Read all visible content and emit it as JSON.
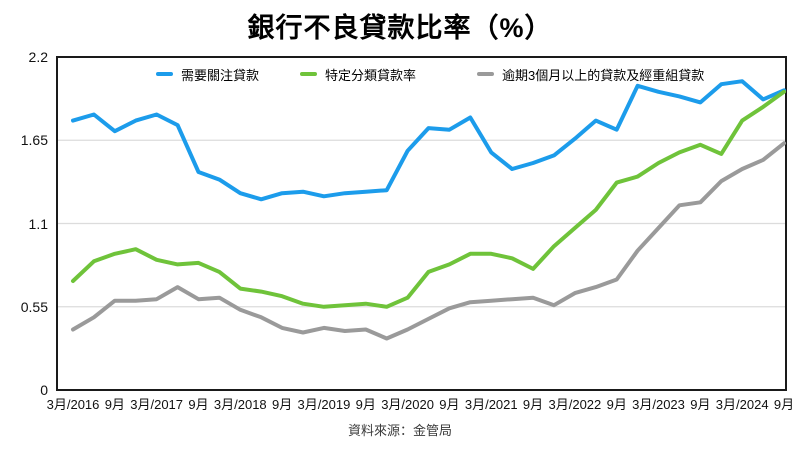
{
  "title": "銀行不良貸款比率（%）",
  "source_note": "資料來源：金管局",
  "chart_data": {
    "type": "line",
    "title": "銀行不良貸款比率（%）",
    "unit": "%",
    "x_interval": "quarterly",
    "x_tick_labels": [
      "3月/2016",
      "9月",
      "3月/2017",
      "9月",
      "3月/2018",
      "9月",
      "3月/2019",
      "9月",
      "3月/2020",
      "9月",
      "3月/2021",
      "9月",
      "3月/2022",
      "9月",
      "3月/2023",
      "9月",
      "3月/2024",
      "9月"
    ],
    "points_per_x_tick": 2,
    "ylim": [
      0,
      2.2
    ],
    "y_ticks": [
      0,
      0.55,
      1.1,
      1.65,
      2.2
    ],
    "grid": "horizontal",
    "legend_position": "top-inside",
    "series": [
      {
        "name": "需要關注貸款",
        "color": "#1C9CEB",
        "values": [
          1.78,
          1.82,
          1.71,
          1.78,
          1.82,
          1.75,
          1.44,
          1.39,
          1.3,
          1.26,
          1.3,
          1.31,
          1.28,
          1.3,
          1.31,
          1.32,
          1.58,
          1.73,
          1.72,
          1.8,
          1.57,
          1.46,
          1.5,
          1.55,
          1.66,
          1.78,
          1.72,
          2.01,
          1.97,
          1.94,
          1.9,
          2.02,
          2.04,
          1.92,
          1.98
        ]
      },
      {
        "name": "特定分類貸款率",
        "color": "#6FC33A",
        "values": [
          0.72,
          0.85,
          0.9,
          0.93,
          0.86,
          0.83,
          0.84,
          0.78,
          0.67,
          0.65,
          0.62,
          0.57,
          0.55,
          0.56,
          0.57,
          0.55,
          0.61,
          0.78,
          0.83,
          0.9,
          0.9,
          0.87,
          0.8,
          0.95,
          1.07,
          1.19,
          1.37,
          1.41,
          1.5,
          1.57,
          1.62,
          1.56,
          1.78,
          1.87,
          1.97
        ]
      },
      {
        "name": "逾期3個月以上的貸款及經重組貸款",
        "color": "#9A9A9A",
        "values": [
          0.4,
          0.48,
          0.59,
          0.59,
          0.6,
          0.68,
          0.6,
          0.61,
          0.53,
          0.48,
          0.41,
          0.38,
          0.41,
          0.39,
          0.4,
          0.34,
          0.4,
          0.47,
          0.54,
          0.58,
          0.59,
          0.6,
          0.61,
          0.56,
          0.64,
          0.68,
          0.73,
          0.92,
          1.07,
          1.22,
          1.24,
          1.38,
          1.46,
          1.52,
          1.63
        ]
      }
    ]
  }
}
